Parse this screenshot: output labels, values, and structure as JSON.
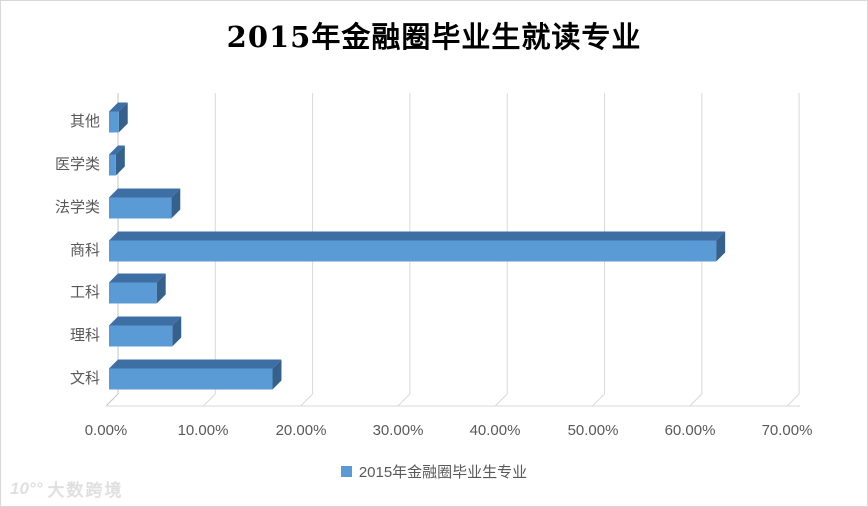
{
  "chart_data": {
    "type": "bar",
    "orientation": "horizontal",
    "style": "3d",
    "title": "2015年金融圈毕业生就读专业",
    "categories": [
      "其他",
      "医学类",
      "法学类",
      "商科",
      "工科",
      "理科",
      "文科"
    ],
    "values": [
      1.0,
      0.7,
      6.4,
      62.4,
      4.9,
      6.5,
      16.8
    ],
    "value_unit": "%",
    "xlim": [
      0,
      70
    ],
    "x_tick_labels": [
      "0.00%",
      "10.00%",
      "20.00%",
      "30.00%",
      "40.00%",
      "50.00%",
      "60.00%",
      "70.00%"
    ],
    "grid": "vertical",
    "legend": {
      "position": "bottom",
      "label": "2015年金融圈毕业生专业"
    },
    "colors": {
      "bar_front": "#5B9BD5",
      "bar_top": "#3D6FA5",
      "bar_side": "#35618C",
      "gridline": "#D9D9D9",
      "axis_line": "#C6C6C6",
      "axis_text": "#595959",
      "title_text": "#000000"
    }
  },
  "watermark": {
    "logo": "10°°",
    "text": "大数跨境"
  }
}
